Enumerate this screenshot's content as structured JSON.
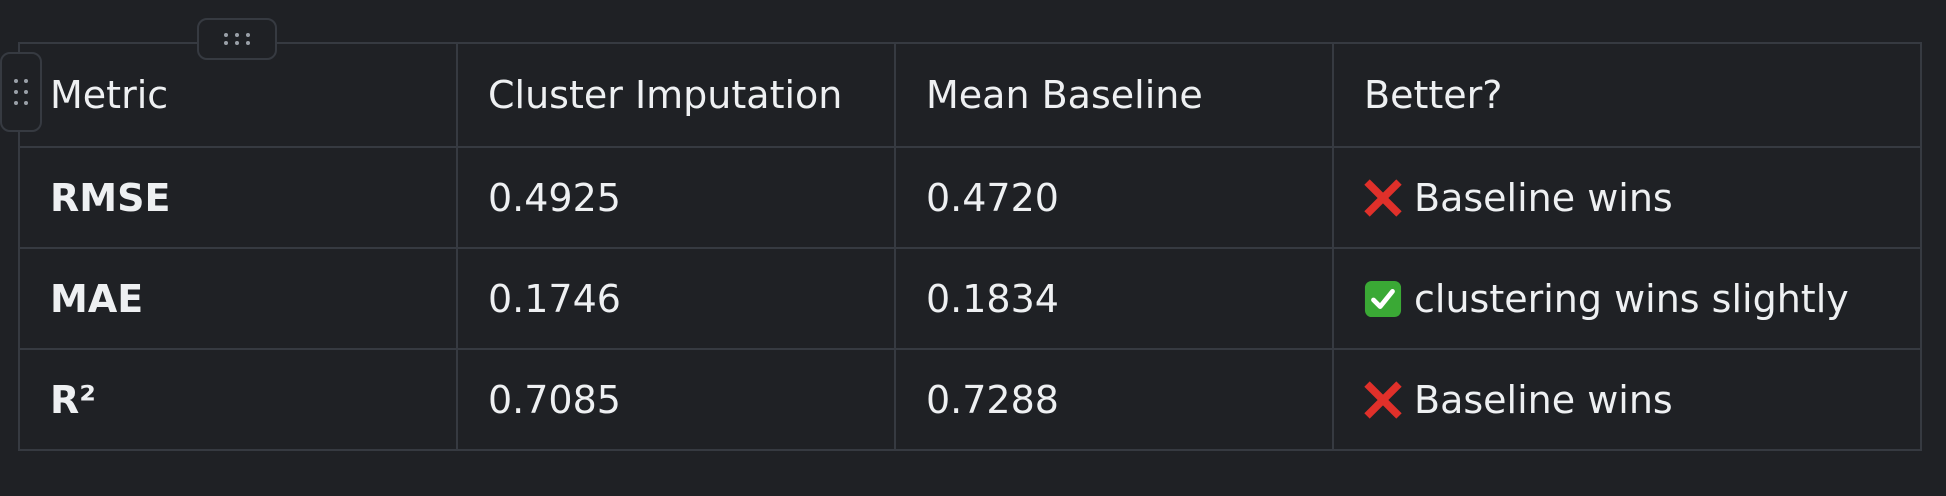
{
  "table": {
    "headers": [
      "Metric",
      "Cluster Imputation",
      "Mean Baseline",
      "Better?"
    ],
    "rows": [
      {
        "metric": "RMSE",
        "cluster": "0.4925",
        "baseline": "0.4720",
        "icon": "cross-mark-icon",
        "better": "Baseline wins"
      },
      {
        "metric": "MAE",
        "cluster": "0.1746",
        "baseline": "0.1834",
        "icon": "check-mark-icon",
        "better": "clustering wins slightly"
      },
      {
        "metric": "R²",
        "cluster": "0.7085",
        "baseline": "0.7288",
        "icon": "cross-mark-icon",
        "better": "Baseline wins"
      }
    ]
  },
  "colors": {
    "background": "#1f2125",
    "border": "#363a41",
    "text": "#eef0f2",
    "cross": "#e0302a",
    "check": "#3aa935"
  }
}
